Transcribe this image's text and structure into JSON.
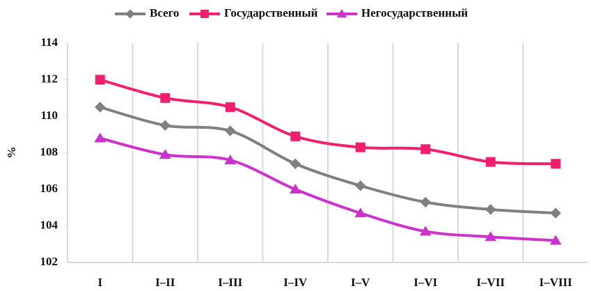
{
  "chart_data": {
    "type": "line",
    "y_label": "%",
    "categories": [
      "I",
      "I–II",
      "I–III",
      "I–IV",
      "I–V",
      "I–VI",
      "I–VII",
      "I–VIII"
    ],
    "series": [
      {
        "name": "Всего",
        "color": "#808080",
        "marker": "diamond",
        "values": [
          110.5,
          109.5,
          109.2,
          107.4,
          106.2,
          105.3,
          104.9,
          104.7
        ]
      },
      {
        "name": "Государственный",
        "color": "#f0206e",
        "marker": "square",
        "values": [
          112.0,
          111.0,
          110.5,
          108.9,
          108.3,
          108.2,
          107.5,
          107.4
        ]
      },
      {
        "name": "Негосударственный",
        "color": "#cc33cc",
        "marker": "triangle",
        "values": [
          108.8,
          107.9,
          107.6,
          106.0,
          104.7,
          103.7,
          103.4,
          103.2
        ]
      }
    ],
    "ylim": [
      102,
      114
    ],
    "yticks": [
      102,
      104,
      106,
      108,
      110,
      112,
      114
    ],
    "grid": "x",
    "legend": "top",
    "smooth": true
  }
}
